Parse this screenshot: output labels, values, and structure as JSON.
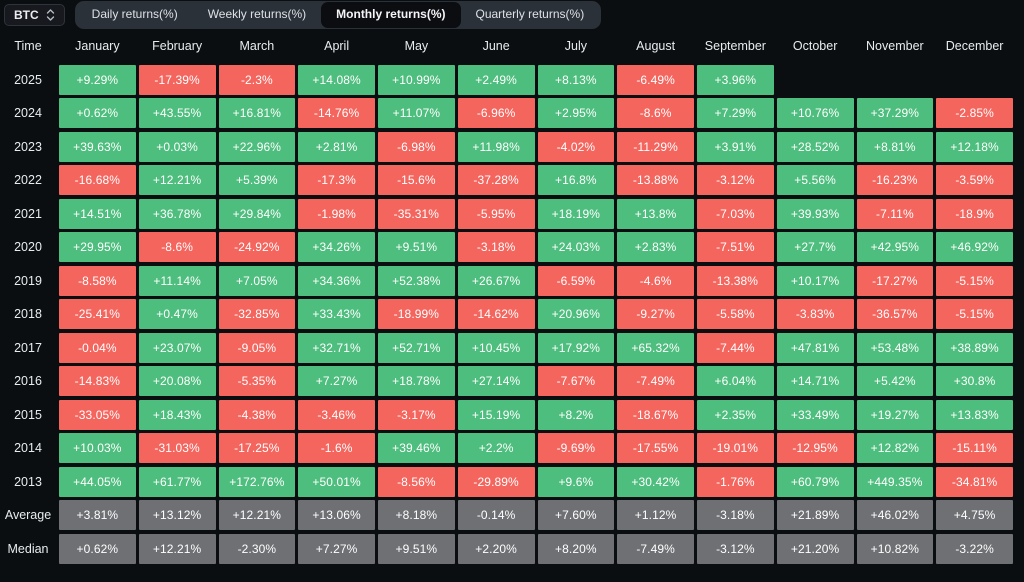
{
  "app": {
    "symbol": "BTC",
    "tabs": [
      "Daily returns(%)",
      "Weekly returns(%)",
      "Monthly returns(%)",
      "Quarterly returns(%)"
    ],
    "active_tab": "Monthly returns(%)"
  },
  "colors": {
    "positive": "#4dbe7d",
    "negative": "#f4655e",
    "neutral": "#6e7073",
    "background": "#0b0e11"
  },
  "chart_data": {
    "type": "heatmap",
    "title": "BTC Monthly returns(%)",
    "categories": [
      "January",
      "February",
      "March",
      "April",
      "May",
      "June",
      "July",
      "August",
      "September",
      "October",
      "November",
      "December"
    ],
    "series": [
      {
        "name": "2025",
        "values": [
          "+9.29%",
          "-17.39%",
          "-2.3%",
          "+14.08%",
          "+10.99%",
          "+2.49%",
          "+8.13%",
          "-6.49%",
          "+3.96%",
          "",
          "",
          ""
        ]
      },
      {
        "name": "2024",
        "values": [
          "+0.62%",
          "+43.55%",
          "+16.81%",
          "-14.76%",
          "+11.07%",
          "-6.96%",
          "+2.95%",
          "-8.6%",
          "+7.29%",
          "+10.76%",
          "+37.29%",
          "-2.85%"
        ]
      },
      {
        "name": "2023",
        "values": [
          "+39.63%",
          "+0.03%",
          "+22.96%",
          "+2.81%",
          "-6.98%",
          "+11.98%",
          "-4.02%",
          "-11.29%",
          "+3.91%",
          "+28.52%",
          "+8.81%",
          "+12.18%"
        ]
      },
      {
        "name": "2022",
        "values": [
          "-16.68%",
          "+12.21%",
          "+5.39%",
          "-17.3%",
          "-15.6%",
          "-37.28%",
          "+16.8%",
          "-13.88%",
          "-3.12%",
          "+5.56%",
          "-16.23%",
          "-3.59%"
        ]
      },
      {
        "name": "2021",
        "values": [
          "+14.51%",
          "+36.78%",
          "+29.84%",
          "-1.98%",
          "-35.31%",
          "-5.95%",
          "+18.19%",
          "+13.8%",
          "-7.03%",
          "+39.93%",
          "-7.11%",
          "-18.9%"
        ]
      },
      {
        "name": "2020",
        "values": [
          "+29.95%",
          "-8.6%",
          "-24.92%",
          "+34.26%",
          "+9.51%",
          "-3.18%",
          "+24.03%",
          "+2.83%",
          "-7.51%",
          "+27.7%",
          "+42.95%",
          "+46.92%"
        ]
      },
      {
        "name": "2019",
        "values": [
          "-8.58%",
          "+11.14%",
          "+7.05%",
          "+34.36%",
          "+52.38%",
          "+26.67%",
          "-6.59%",
          "-4.6%",
          "-13.38%",
          "+10.17%",
          "-17.27%",
          "-5.15%"
        ]
      },
      {
        "name": "2018",
        "values": [
          "-25.41%",
          "+0.47%",
          "-32.85%",
          "+33.43%",
          "-18.99%",
          "-14.62%",
          "+20.96%",
          "-9.27%",
          "-5.58%",
          "-3.83%",
          "-36.57%",
          "-5.15%"
        ]
      },
      {
        "name": "2017",
        "values": [
          "-0.04%",
          "+23.07%",
          "-9.05%",
          "+32.71%",
          "+52.71%",
          "+10.45%",
          "+17.92%",
          "+65.32%",
          "-7.44%",
          "+47.81%",
          "+53.48%",
          "+38.89%"
        ]
      },
      {
        "name": "2016",
        "values": [
          "-14.83%",
          "+20.08%",
          "-5.35%",
          "+7.27%",
          "+18.78%",
          "+27.14%",
          "-7.67%",
          "-7.49%",
          "+6.04%",
          "+14.71%",
          "+5.42%",
          "+30.8%"
        ]
      },
      {
        "name": "2015",
        "values": [
          "-33.05%",
          "+18.43%",
          "-4.38%",
          "-3.46%",
          "-3.17%",
          "+15.19%",
          "+8.2%",
          "-18.67%",
          "+2.35%",
          "+33.49%",
          "+19.27%",
          "+13.83%"
        ]
      },
      {
        "name": "2014",
        "values": [
          "+10.03%",
          "-31.03%",
          "-17.25%",
          "-1.6%",
          "+39.46%",
          "+2.2%",
          "-9.69%",
          "-17.55%",
          "-19.01%",
          "-12.95%",
          "+12.82%",
          "-15.11%"
        ]
      },
      {
        "name": "2013",
        "values": [
          "+44.05%",
          "+61.77%",
          "+172.76%",
          "+50.01%",
          "-8.56%",
          "-29.89%",
          "+9.6%",
          "+30.42%",
          "-1.76%",
          "+60.79%",
          "+449.35%",
          "-34.81%"
        ]
      },
      {
        "name": "Average",
        "values": [
          "+3.81%",
          "+13.12%",
          "+12.21%",
          "+13.06%",
          "+8.18%",
          "-0.14%",
          "+7.60%",
          "+1.12%",
          "-3.18%",
          "+21.89%",
          "+46.02%",
          "+4.75%"
        ]
      },
      {
        "name": "Median",
        "values": [
          "+0.62%",
          "+12.21%",
          "-2.30%",
          "+7.27%",
          "+9.51%",
          "+2.20%",
          "+8.20%",
          "-7.49%",
          "-3.12%",
          "+21.20%",
          "+10.82%",
          "-3.22%"
        ]
      }
    ]
  },
  "table": {
    "time_header": "Time",
    "months": [
      "January",
      "February",
      "March",
      "April",
      "May",
      "June",
      "July",
      "August",
      "September",
      "October",
      "November",
      "December"
    ],
    "rows": [
      {
        "label": "2025",
        "summary": false,
        "values": [
          "+9.29%",
          "-17.39%",
          "-2.3%",
          "+14.08%",
          "+10.99%",
          "+2.49%",
          "+8.13%",
          "-6.49%",
          "+3.96%",
          "",
          "",
          ""
        ]
      },
      {
        "label": "2024",
        "summary": false,
        "values": [
          "+0.62%",
          "+43.55%",
          "+16.81%",
          "-14.76%",
          "+11.07%",
          "-6.96%",
          "+2.95%",
          "-8.6%",
          "+7.29%",
          "+10.76%",
          "+37.29%",
          "-2.85%"
        ]
      },
      {
        "label": "2023",
        "summary": false,
        "values": [
          "+39.63%",
          "+0.03%",
          "+22.96%",
          "+2.81%",
          "-6.98%",
          "+11.98%",
          "-4.02%",
          "-11.29%",
          "+3.91%",
          "+28.52%",
          "+8.81%",
          "+12.18%"
        ]
      },
      {
        "label": "2022",
        "summary": false,
        "values": [
          "-16.68%",
          "+12.21%",
          "+5.39%",
          "-17.3%",
          "-15.6%",
          "-37.28%",
          "+16.8%",
          "-13.88%",
          "-3.12%",
          "+5.56%",
          "-16.23%",
          "-3.59%"
        ]
      },
      {
        "label": "2021",
        "summary": false,
        "values": [
          "+14.51%",
          "+36.78%",
          "+29.84%",
          "-1.98%",
          "-35.31%",
          "-5.95%",
          "+18.19%",
          "+13.8%",
          "-7.03%",
          "+39.93%",
          "-7.11%",
          "-18.9%"
        ]
      },
      {
        "label": "2020",
        "summary": false,
        "values": [
          "+29.95%",
          "-8.6%",
          "-24.92%",
          "+34.26%",
          "+9.51%",
          "-3.18%",
          "+24.03%",
          "+2.83%",
          "-7.51%",
          "+27.7%",
          "+42.95%",
          "+46.92%"
        ]
      },
      {
        "label": "2019",
        "summary": false,
        "values": [
          "-8.58%",
          "+11.14%",
          "+7.05%",
          "+34.36%",
          "+52.38%",
          "+26.67%",
          "-6.59%",
          "-4.6%",
          "-13.38%",
          "+10.17%",
          "-17.27%",
          "-5.15%"
        ]
      },
      {
        "label": "2018",
        "summary": false,
        "values": [
          "-25.41%",
          "+0.47%",
          "-32.85%",
          "+33.43%",
          "-18.99%",
          "-14.62%",
          "+20.96%",
          "-9.27%",
          "-5.58%",
          "-3.83%",
          "-36.57%",
          "-5.15%"
        ]
      },
      {
        "label": "2017",
        "summary": false,
        "values": [
          "-0.04%",
          "+23.07%",
          "-9.05%",
          "+32.71%",
          "+52.71%",
          "+10.45%",
          "+17.92%",
          "+65.32%",
          "-7.44%",
          "+47.81%",
          "+53.48%",
          "+38.89%"
        ]
      },
      {
        "label": "2016",
        "summary": false,
        "values": [
          "-14.83%",
          "+20.08%",
          "-5.35%",
          "+7.27%",
          "+18.78%",
          "+27.14%",
          "-7.67%",
          "-7.49%",
          "+6.04%",
          "+14.71%",
          "+5.42%",
          "+30.8%"
        ]
      },
      {
        "label": "2015",
        "summary": false,
        "values": [
          "-33.05%",
          "+18.43%",
          "-4.38%",
          "-3.46%",
          "-3.17%",
          "+15.19%",
          "+8.2%",
          "-18.67%",
          "+2.35%",
          "+33.49%",
          "+19.27%",
          "+13.83%"
        ]
      },
      {
        "label": "2014",
        "summary": false,
        "values": [
          "+10.03%",
          "-31.03%",
          "-17.25%",
          "-1.6%",
          "+39.46%",
          "+2.2%",
          "-9.69%",
          "-17.55%",
          "-19.01%",
          "-12.95%",
          "+12.82%",
          "-15.11%"
        ]
      },
      {
        "label": "2013",
        "summary": false,
        "values": [
          "+44.05%",
          "+61.77%",
          "+172.76%",
          "+50.01%",
          "-8.56%",
          "-29.89%",
          "+9.6%",
          "+30.42%",
          "-1.76%",
          "+60.79%",
          "+449.35%",
          "-34.81%"
        ]
      },
      {
        "label": "Average",
        "summary": true,
        "values": [
          "+3.81%",
          "+13.12%",
          "+12.21%",
          "+13.06%",
          "+8.18%",
          "-0.14%",
          "+7.60%",
          "+1.12%",
          "-3.18%",
          "+21.89%",
          "+46.02%",
          "+4.75%"
        ]
      },
      {
        "label": "Median",
        "summary": true,
        "values": [
          "+0.62%",
          "+12.21%",
          "-2.30%",
          "+7.27%",
          "+9.51%",
          "+2.20%",
          "+8.20%",
          "-7.49%",
          "-3.12%",
          "+21.20%",
          "+10.82%",
          "-3.22%"
        ]
      }
    ]
  }
}
